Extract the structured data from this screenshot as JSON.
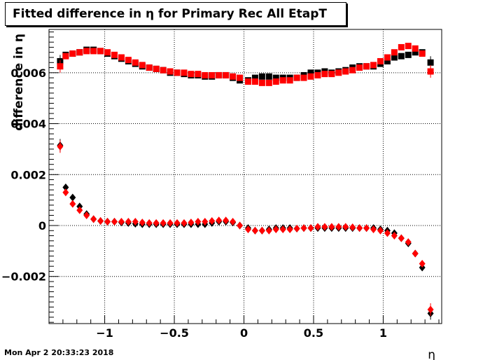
{
  "page": {
    "datestamp": "Mon Apr  2 20:33:23 2018"
  },
  "chart_data": {
    "type": "scatter",
    "title": "Fitted difference in  η for Primary Rec All EtapT",
    "xlabel": "η",
    "ylabel": "difference in  η",
    "xlim": [
      -1.4,
      1.42
    ],
    "ylim": [
      -0.00385,
      0.0077
    ],
    "grid": true,
    "x_ticks": [
      -1,
      -0.5,
      0,
      0.5,
      1
    ],
    "x_tick_labels": [
      "−1",
      "−0.5",
      "0",
      "0.5",
      "1"
    ],
    "y_ticks": [
      -0.002,
      0,
      0.002,
      0.004,
      0.006
    ],
    "y_tick_labels": [
      "−0.002",
      "0",
      "0.002",
      "0.004",
      "0.006"
    ],
    "colors": {
      "black": "#000000",
      "red": "#ff0000"
    },
    "series": [
      {
        "marker": "square",
        "color": "#000000",
        "x": [
          -1.32,
          -1.28,
          -1.23,
          -1.18,
          -1.13,
          -1.08,
          -1.03,
          -0.98,
          -0.93,
          -0.88,
          -0.83,
          -0.78,
          -0.73,
          -0.68,
          -0.63,
          -0.58,
          -0.53,
          -0.48,
          -0.43,
          -0.38,
          -0.33,
          -0.28,
          -0.23,
          -0.18,
          -0.13,
          -0.08,
          -0.03,
          0.03,
          0.08,
          0.13,
          0.18,
          0.23,
          0.28,
          0.33,
          0.38,
          0.43,
          0.48,
          0.53,
          0.58,
          0.63,
          0.68,
          0.73,
          0.78,
          0.83,
          0.88,
          0.93,
          0.98,
          1.03,
          1.08,
          1.13,
          1.18,
          1.23,
          1.28,
          1.34
        ],
        "y": [
          0.00645,
          0.0067,
          0.00675,
          0.0068,
          0.0069,
          0.0069,
          0.00685,
          0.00675,
          0.00665,
          0.00655,
          0.00645,
          0.00635,
          0.00625,
          0.0062,
          0.00615,
          0.0061,
          0.006,
          0.006,
          0.00595,
          0.0059,
          0.0059,
          0.00585,
          0.00585,
          0.0059,
          0.0059,
          0.0058,
          0.0057,
          0.0057,
          0.0058,
          0.00585,
          0.00585,
          0.0058,
          0.0058,
          0.0058,
          0.0058,
          0.0059,
          0.006,
          0.006,
          0.00605,
          0.006,
          0.00605,
          0.0061,
          0.0062,
          0.00625,
          0.00625,
          0.00625,
          0.00635,
          0.00645,
          0.0066,
          0.00665,
          0.0067,
          0.0068,
          0.0068,
          0.0064
        ]
      },
      {
        "marker": "square",
        "color": "#ff0000",
        "x": [
          -1.32,
          -1.28,
          -1.23,
          -1.18,
          -1.13,
          -1.08,
          -1.03,
          -0.98,
          -0.93,
          -0.88,
          -0.83,
          -0.78,
          -0.73,
          -0.68,
          -0.63,
          -0.58,
          -0.53,
          -0.48,
          -0.43,
          -0.38,
          -0.33,
          -0.28,
          -0.23,
          -0.18,
          -0.13,
          -0.08,
          -0.03,
          0.03,
          0.08,
          0.13,
          0.18,
          0.23,
          0.28,
          0.33,
          0.38,
          0.43,
          0.48,
          0.53,
          0.58,
          0.63,
          0.68,
          0.73,
          0.78,
          0.83,
          0.88,
          0.93,
          0.98,
          1.03,
          1.08,
          1.13,
          1.18,
          1.23,
          1.28,
          1.34
        ],
        "y": [
          0.00625,
          0.00665,
          0.00675,
          0.0068,
          0.00685,
          0.00685,
          0.00685,
          0.0068,
          0.0067,
          0.0066,
          0.0065,
          0.0064,
          0.0063,
          0.0062,
          0.00615,
          0.0061,
          0.00605,
          0.006,
          0.006,
          0.00595,
          0.00595,
          0.0059,
          0.0059,
          0.0059,
          0.0059,
          0.00585,
          0.0058,
          0.00565,
          0.00565,
          0.0056,
          0.0056,
          0.00565,
          0.0057,
          0.0057,
          0.0058,
          0.0058,
          0.00585,
          0.0059,
          0.00595,
          0.00595,
          0.006,
          0.00605,
          0.0061,
          0.0062,
          0.00625,
          0.0063,
          0.00645,
          0.0066,
          0.0068,
          0.007,
          0.00705,
          0.00695,
          0.00675,
          0.00605
        ]
      },
      {
        "marker": "diamond",
        "color": "#000000",
        "x": [
          -1.32,
          -1.28,
          -1.23,
          -1.18,
          -1.13,
          -1.08,
          -1.03,
          -0.98,
          -0.93,
          -0.88,
          -0.83,
          -0.78,
          -0.73,
          -0.68,
          -0.63,
          -0.58,
          -0.53,
          -0.48,
          -0.43,
          -0.38,
          -0.33,
          -0.28,
          -0.23,
          -0.18,
          -0.13,
          -0.08,
          -0.03,
          0.03,
          0.08,
          0.13,
          0.18,
          0.23,
          0.28,
          0.33,
          0.38,
          0.43,
          0.48,
          0.53,
          0.58,
          0.63,
          0.68,
          0.73,
          0.78,
          0.83,
          0.88,
          0.93,
          0.98,
          1.03,
          1.08,
          1.13,
          1.18,
          1.23,
          1.28,
          1.34
        ],
        "y": [
          0.00315,
          0.0015,
          0.0011,
          0.00075,
          0.00045,
          0.00025,
          0.00018,
          0.00015,
          0.00015,
          0.00012,
          0.0001,
          7e-05,
          5e-05,
          5e-05,
          5e-05,
          5e-05,
          5e-05,
          5e-05,
          5e-05,
          5e-05,
          5e-05,
          5e-05,
          0.0001,
          0.00015,
          0.00015,
          0.00012,
          0,
          -0.0001,
          -0.0002,
          -0.0002,
          -0.00015,
          -0.0001,
          -0.0001,
          -0.0001,
          -0.00012,
          -0.0001,
          -0.0001,
          -0.0001,
          -0.0001,
          -0.0001,
          -0.0001,
          -0.0001,
          -0.0001,
          -0.0001,
          -0.0001,
          -0.0001,
          -0.00015,
          -0.0002,
          -0.0003,
          -0.0005,
          -0.0007,
          -0.0011,
          -0.00165,
          -0.00345
        ]
      },
      {
        "marker": "diamond",
        "color": "#ff0000",
        "x": [
          -1.32,
          -1.28,
          -1.23,
          -1.18,
          -1.13,
          -1.08,
          -1.03,
          -0.98,
          -0.93,
          -0.88,
          -0.83,
          -0.78,
          -0.73,
          -0.68,
          -0.63,
          -0.58,
          -0.53,
          -0.48,
          -0.43,
          -0.38,
          -0.33,
          -0.28,
          -0.23,
          -0.18,
          -0.13,
          -0.08,
          -0.03,
          0.03,
          0.08,
          0.13,
          0.18,
          0.23,
          0.28,
          0.33,
          0.38,
          0.43,
          0.48,
          0.53,
          0.58,
          0.63,
          0.68,
          0.73,
          0.78,
          0.83,
          0.88,
          0.93,
          0.98,
          1.03,
          1.08,
          1.13,
          1.18,
          1.23,
          1.28,
          1.34
        ],
        "y": [
          0.0031,
          0.0013,
          0.00085,
          0.0006,
          0.0004,
          0.00025,
          0.00018,
          0.00015,
          0.00015,
          0.00015,
          0.00015,
          0.00015,
          0.00012,
          0.0001,
          0.0001,
          0.0001,
          0.0001,
          0.0001,
          0.0001,
          0.00012,
          0.00015,
          0.00015,
          0.00018,
          0.0002,
          0.0002,
          0.00015,
          0,
          -0.00015,
          -0.0002,
          -0.0002,
          -0.0002,
          -0.00015,
          -0.00015,
          -0.00015,
          -0.00012,
          -0.0001,
          -0.0001,
          -5e-05,
          -5e-05,
          -5e-05,
          -5e-05,
          -5e-05,
          -7e-05,
          -0.0001,
          -0.0001,
          -0.00015,
          -0.0002,
          -0.0003,
          -0.0004,
          -0.0005,
          -0.00065,
          -0.0011,
          -0.0015,
          -0.0033
        ]
      }
    ]
  }
}
